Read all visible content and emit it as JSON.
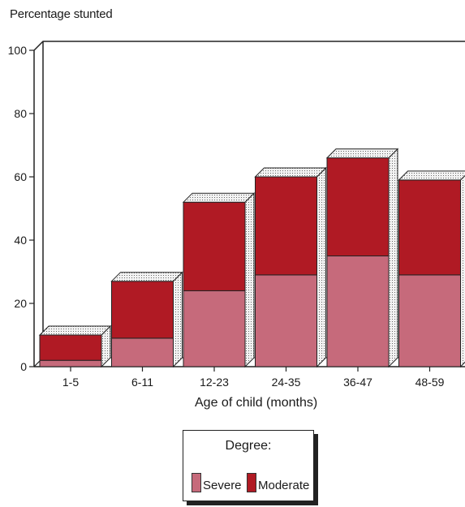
{
  "chart_data": {
    "type": "bar",
    "stacked": true,
    "style": "3d",
    "ylabel": "Percentage stunted",
    "xlabel": "Age of child (months)",
    "categories": [
      "1-5",
      "6-11",
      "12-23",
      "24-35",
      "36-47",
      "48-59"
    ],
    "series": [
      {
        "name": "Severe",
        "values": [
          2,
          9,
          24,
          29,
          35,
          29
        ],
        "color": "#c66a7b"
      },
      {
        "name": "Moderate",
        "values": [
          8,
          18,
          28,
          31,
          31,
          30
        ],
        "color": "#b01a24"
      }
    ],
    "ylim": [
      0,
      100
    ],
    "yticks": [
      0,
      20,
      40,
      60,
      80,
      100
    ],
    "grid": false,
    "legend": {
      "title": "Degree:",
      "placement": "bottom-center"
    }
  }
}
